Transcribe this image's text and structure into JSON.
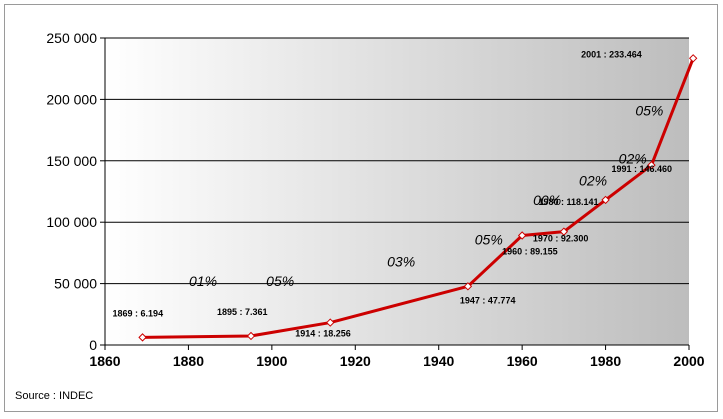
{
  "source": "Source : INDEC",
  "chart_data": {
    "type": "line",
    "x": [
      1869,
      1895,
      1914,
      1947,
      1960,
      1970,
      1980,
      1991,
      2001
    ],
    "series": [
      {
        "values": [
          6194,
          7361,
          18256,
          47774,
          89155,
          92300,
          118141,
          146460,
          233464
        ],
        "color": "#cc0000"
      }
    ],
    "point_labels": [
      "1869 : 6.194",
      "1895 : 7.361",
      "1914 : 18.256",
      "1947 : 47.774",
      "1960 : 89.155",
      "1970 : 92.300",
      "1980 : 118.141",
      "1991 : 146.460",
      "2001 : 233.464"
    ],
    "xlim": [
      1860,
      2000
    ],
    "ylim": [
      0,
      250000
    ],
    "xticks": [
      1860,
      1880,
      1900,
      1920,
      1940,
      1960,
      1980,
      2000
    ],
    "xtick_labels": [
      "1860",
      "1880",
      "1900",
      "1920",
      "1940",
      "1960",
      "1980",
      "2000"
    ],
    "yticks": [
      0,
      50000,
      100000,
      150000,
      200000,
      250000
    ],
    "ytick_labels": [
      "0",
      "50 000",
      "100 000",
      "150 000",
      "200 000",
      "250 000"
    ],
    "grid": "horizontal",
    "background": "gradient",
    "annotations": [
      "01%",
      "05%",
      "03%",
      "05%",
      "00%",
      "02%",
      "02%",
      "05%"
    ]
  }
}
